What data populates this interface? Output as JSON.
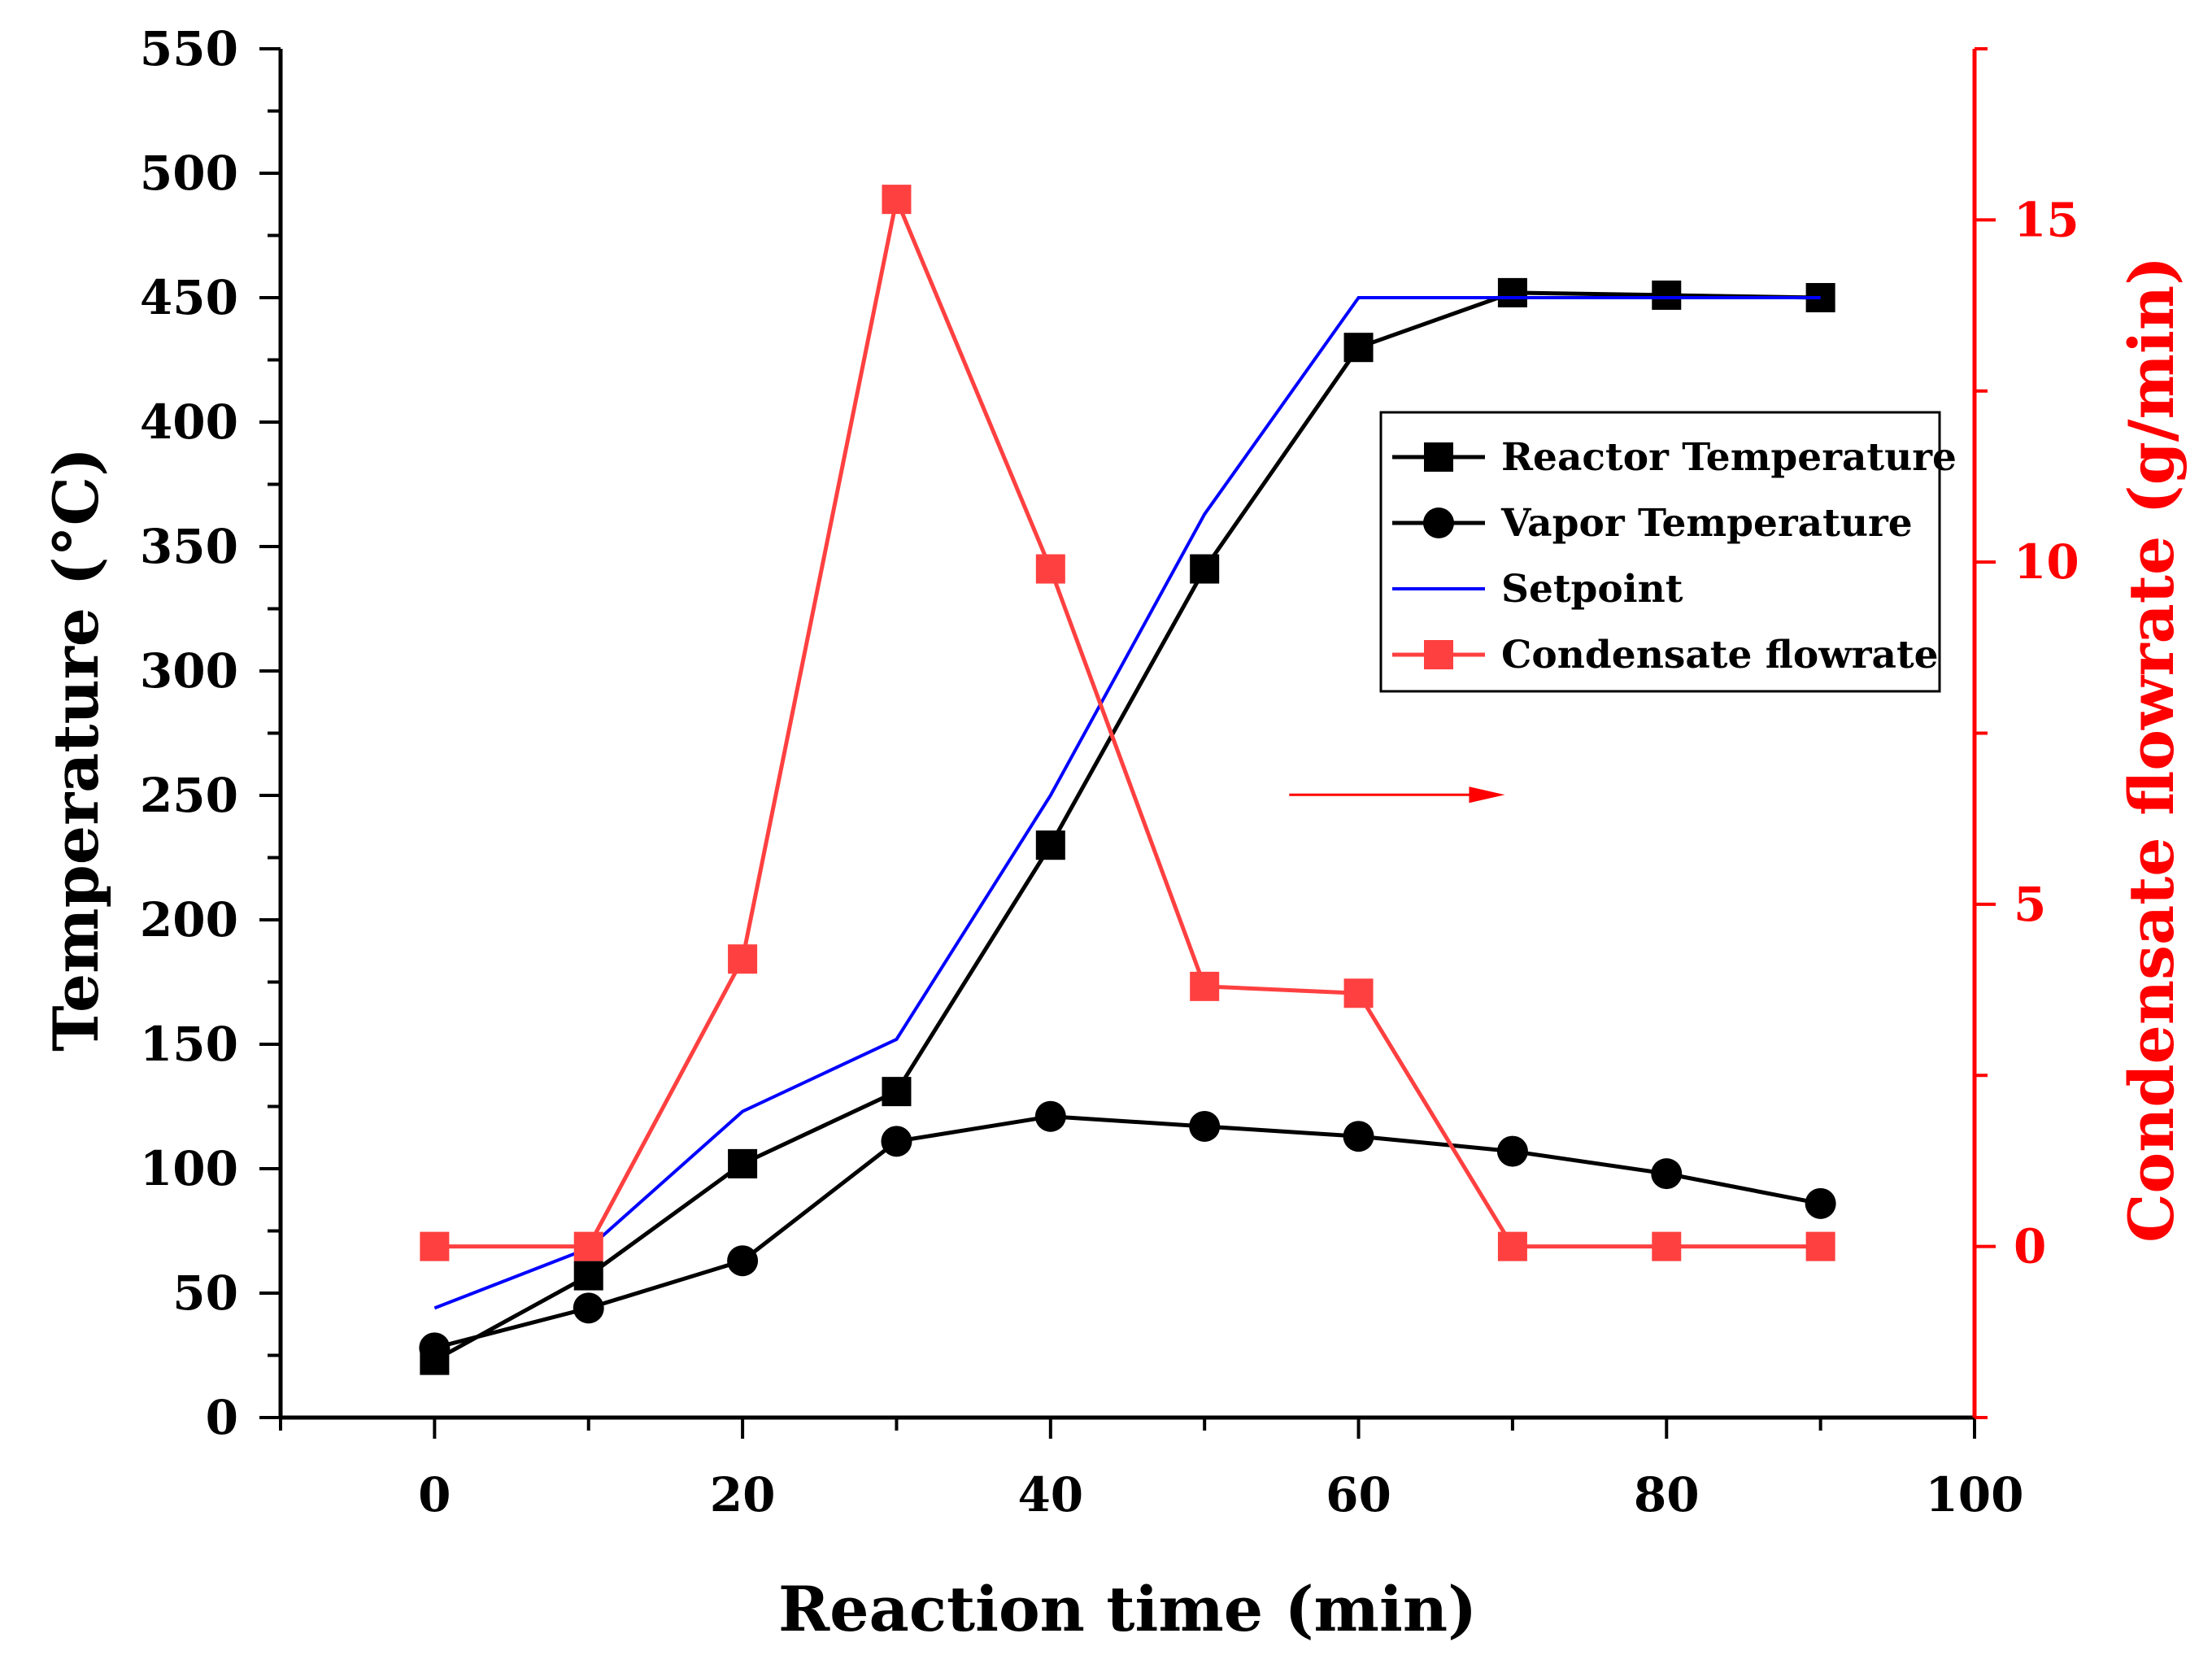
{
  "chart_data": {
    "type": "line",
    "xlabel": "Reaction time (min)",
    "ylabel": "Temperature (°C)",
    "y2label": "Condensate flowrate (g/min)",
    "xlim": [
      -10,
      100
    ],
    "ylim": [
      0,
      550
    ],
    "y2lim": [
      -2.5,
      17.5
    ],
    "xticks": [
      0,
      20,
      40,
      60,
      80,
      100
    ],
    "yticks": [
      0,
      50,
      100,
      150,
      200,
      250,
      300,
      350,
      400,
      450,
      500,
      550
    ],
    "y2ticks": [
      0,
      5,
      10,
      15
    ],
    "legend_position": "upper-right",
    "x": [
      0,
      10,
      20,
      30,
      40,
      50,
      60,
      70,
      80,
      90
    ],
    "series": [
      {
        "name": "Reactor Temperature",
        "axis": "left",
        "color": "#000000",
        "marker": "square",
        "values": [
          23,
          57,
          102,
          131,
          230,
          341,
          430,
          452,
          451,
          450
        ]
      },
      {
        "name": "Vapor Temperature",
        "axis": "left",
        "color": "#000000",
        "marker": "circle",
        "values": [
          28,
          44,
          63,
          111,
          121,
          117,
          113,
          107,
          98,
          86
        ]
      },
      {
        "name": "Setpoint",
        "axis": "left",
        "color": "#0000ff",
        "marker": "none",
        "x": [
          0,
          10,
          20,
          30,
          40,
          50,
          60,
          70,
          80,
          90
        ],
        "values": [
          44,
          68,
          123,
          152,
          250,
          363,
          450,
          450,
          450,
          450
        ]
      },
      {
        "name": "Condensate flowrate",
        "axis": "right",
        "color": "#ff4040",
        "marker": "square",
        "values": [
          0,
          0,
          4.2,
          15.3,
          9.9,
          3.8,
          3.7,
          0,
          0,
          0
        ]
      }
    ],
    "annotations": [
      {
        "type": "arrow",
        "direction": "right",
        "color": "#ff0000",
        "meaning": "red series uses right axis"
      }
    ],
    "axis_colors": {
      "left": "#000000",
      "right": "#ff0000",
      "bottom": "#000000"
    }
  }
}
